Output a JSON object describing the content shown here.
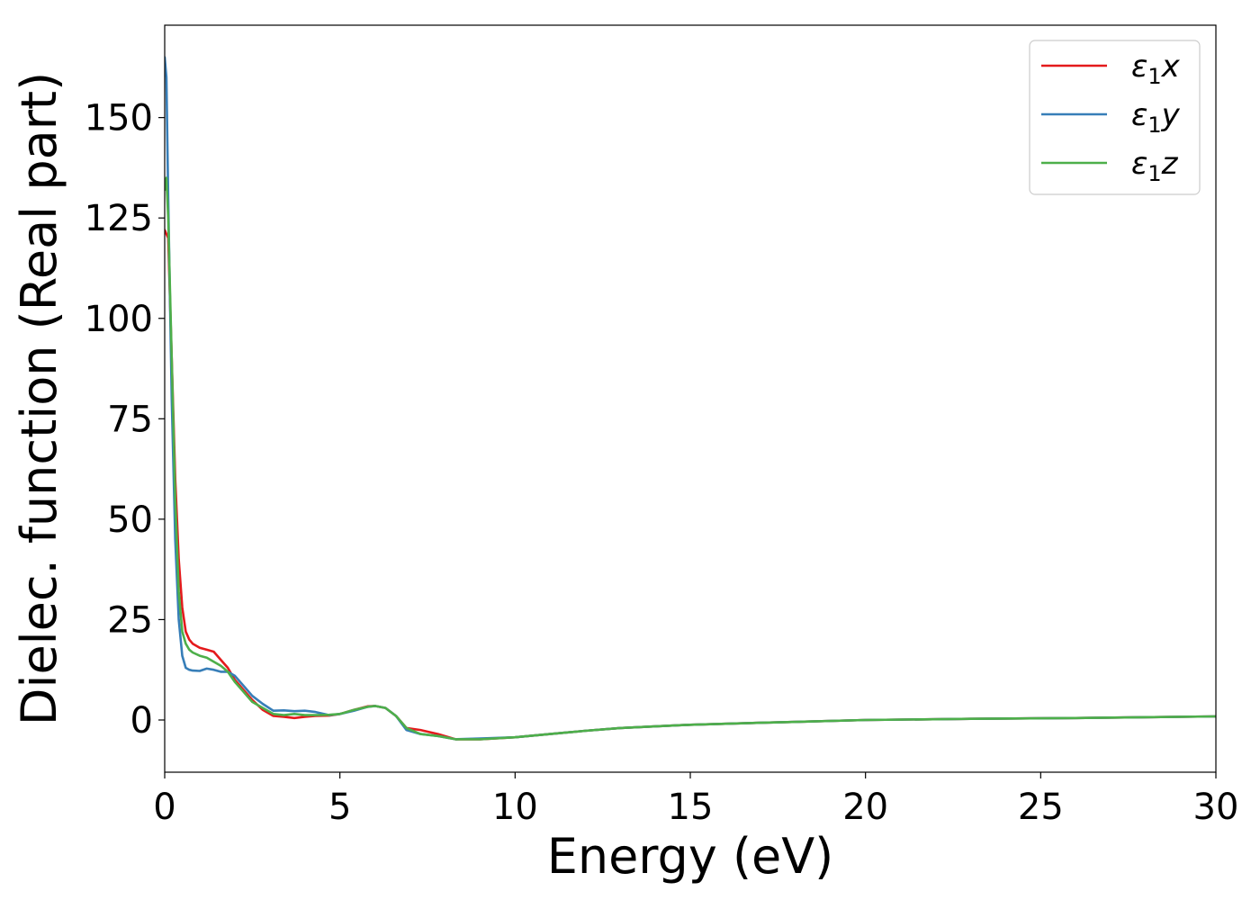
{
  "chart_data": {
    "type": "line",
    "title": "",
    "xlabel": "Energy (eV)",
    "ylabel": "Dielec. function (Real part)",
    "xlim": [
      0,
      30
    ],
    "ylim": [
      -13,
      173
    ],
    "xticks": [
      0,
      5,
      10,
      15,
      20,
      25,
      30
    ],
    "yticks": [
      0,
      25,
      50,
      75,
      100,
      125,
      150
    ],
    "grid": false,
    "legend_position": "top-right",
    "series": [
      {
        "name": "ε₁x",
        "legend_main": "ε",
        "legend_sub": "1",
        "legend_tail": "x",
        "color": "#e41a1c",
        "x": [
          0,
          0.1,
          0.2,
          0.3,
          0.4,
          0.5,
          0.6,
          0.7,
          0.8,
          1.0,
          1.2,
          1.4,
          1.6,
          1.8,
          2.0,
          2.2,
          2.5,
          2.8,
          3.1,
          3.4,
          3.7,
          4.0,
          4.3,
          4.7,
          5.0,
          5.4,
          5.8,
          6.0,
          6.3,
          6.6,
          6.9,
          7.3,
          7.8,
          8.3,
          9.0,
          10.0,
          11.0,
          12.0,
          13.0,
          14.0,
          15.0,
          17.0,
          20.0,
          23.0,
          26.0,
          30.0
        ],
        "y": [
          122,
          120,
          90,
          60,
          40,
          28,
          22,
          20,
          19,
          18,
          17.5,
          17,
          15,
          13,
          10,
          8,
          5,
          2.5,
          1,
          0.8,
          0.5,
          0.8,
          1,
          1.1,
          1.5,
          2.5,
          3.4,
          3.5,
          3,
          1,
          -2,
          -2.5,
          -3.5,
          -4.8,
          -4.8,
          -4.3,
          -3.5,
          -2.7,
          -2,
          -1.6,
          -1.2,
          -0.7,
          0,
          0.3,
          0.5,
          0.9
        ]
      },
      {
        "name": "ε₁y",
        "legend_main": "ε",
        "legend_sub": "1",
        "legend_tail": "y",
        "color": "#377eb8",
        "x": [
          0,
          0.05,
          0.1,
          0.2,
          0.3,
          0.4,
          0.5,
          0.6,
          0.7,
          0.8,
          1.0,
          1.2,
          1.4,
          1.6,
          1.8,
          2.0,
          2.2,
          2.5,
          2.8,
          3.1,
          3.4,
          3.7,
          4.0,
          4.3,
          4.7,
          5.0,
          5.4,
          5.8,
          6.0,
          6.3,
          6.6,
          6.9,
          7.3,
          7.8,
          8.3,
          9.0,
          10.0,
          11.0,
          12.0,
          13.0,
          14.0,
          15.0,
          17.0,
          20.0,
          23.0,
          26.0,
          30.0
        ],
        "y": [
          165,
          160,
          130,
          80,
          45,
          25,
          16,
          13,
          12.5,
          12.3,
          12.2,
          12.8,
          12.5,
          12,
          12,
          11,
          9,
          6,
          4,
          2.3,
          2.4,
          2.2,
          2.3,
          2,
          1.2,
          1.5,
          2.3,
          3.3,
          3.5,
          3,
          1,
          -2.5,
          -3.5,
          -4,
          -4.8,
          -4.6,
          -4.3,
          -3.5,
          -2.7,
          -2,
          -1.6,
          -1.2,
          -0.7,
          0,
          0.3,
          0.5,
          0.9
        ]
      },
      {
        "name": "ε₁z",
        "legend_main": "ε",
        "legend_sub": "1",
        "legend_tail": "z",
        "color": "#4daf4a",
        "x": [
          0,
          0.05,
          0.1,
          0.2,
          0.3,
          0.4,
          0.5,
          0.6,
          0.7,
          0.8,
          1.0,
          1.2,
          1.4,
          1.6,
          1.8,
          2.0,
          2.2,
          2.5,
          2.8,
          3.1,
          3.4,
          3.7,
          4.0,
          4.3,
          4.7,
          5.0,
          5.4,
          5.8,
          6.0,
          6.3,
          6.6,
          6.9,
          7.3,
          7.8,
          8.3,
          9.0,
          10.0,
          11.0,
          12.0,
          13.0,
          14.0,
          15.0,
          17.0,
          20.0,
          23.0,
          26.0,
          30.0
        ],
        "y": [
          132,
          135,
          125,
          90,
          55,
          32,
          22,
          19,
          17.5,
          16.8,
          16,
          15.5,
          14.5,
          13.5,
          12,
          9.5,
          7.5,
          4.5,
          3,
          1.5,
          1.2,
          1.5,
          1.2,
          1.2,
          1.3,
          1.5,
          2.5,
          3.3,
          3.5,
          3,
          1,
          -2,
          -3.5,
          -4,
          -4.8,
          -4.8,
          -4.3,
          -3.5,
          -2.7,
          -2,
          -1.6,
          -1.2,
          -0.7,
          0,
          0.3,
          0.5,
          0.9
        ]
      }
    ]
  }
}
